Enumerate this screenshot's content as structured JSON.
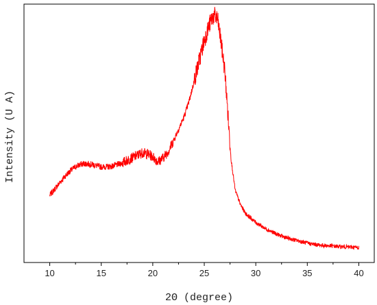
{
  "chart_data": {
    "type": "line",
    "title": "",
    "xlabel": "2Θ (degree)",
    "ylabel": "Intensity (U A)",
    "xlim": [
      7.5,
      41.5
    ],
    "ylim": [
      0,
      1
    ],
    "x_ticks": [
      "10",
      "15",
      "20",
      "25",
      "30",
      "35",
      "40"
    ],
    "y_ticks": [],
    "grid": false,
    "legend": "none",
    "series": [
      {
        "color": "#ff0000",
        "x": [
          10,
          10.5,
          11,
          11.5,
          12,
          12.5,
          13,
          13.5,
          14,
          14.5,
          15,
          15.5,
          16,
          16.5,
          17,
          17.5,
          18,
          18.5,
          19,
          19.5,
          20,
          20.5,
          21,
          21.5,
          22,
          22.5,
          23,
          23.5,
          24,
          24.5,
          25,
          25.5,
          25.8,
          26,
          26.3,
          26.6,
          27,
          27.3,
          27.6,
          28,
          28.5,
          29,
          30,
          31,
          32,
          33,
          34,
          35,
          36,
          37,
          38,
          39,
          40
        ],
        "values": [
          0.26,
          0.285,
          0.31,
          0.335,
          0.355,
          0.37,
          0.38,
          0.383,
          0.38,
          0.375,
          0.37,
          0.37,
          0.372,
          0.378,
          0.385,
          0.395,
          0.405,
          0.415,
          0.425,
          0.42,
          0.41,
          0.39,
          0.405,
          0.43,
          0.47,
          0.515,
          0.56,
          0.62,
          0.7,
          0.78,
          0.86,
          0.92,
          0.95,
          0.955,
          0.94,
          0.86,
          0.74,
          0.57,
          0.4,
          0.28,
          0.225,
          0.19,
          0.155,
          0.13,
          0.11,
          0.095,
          0.085,
          0.075,
          0.068,
          0.065,
          0.062,
          0.06,
          0.058
        ]
      }
    ]
  }
}
